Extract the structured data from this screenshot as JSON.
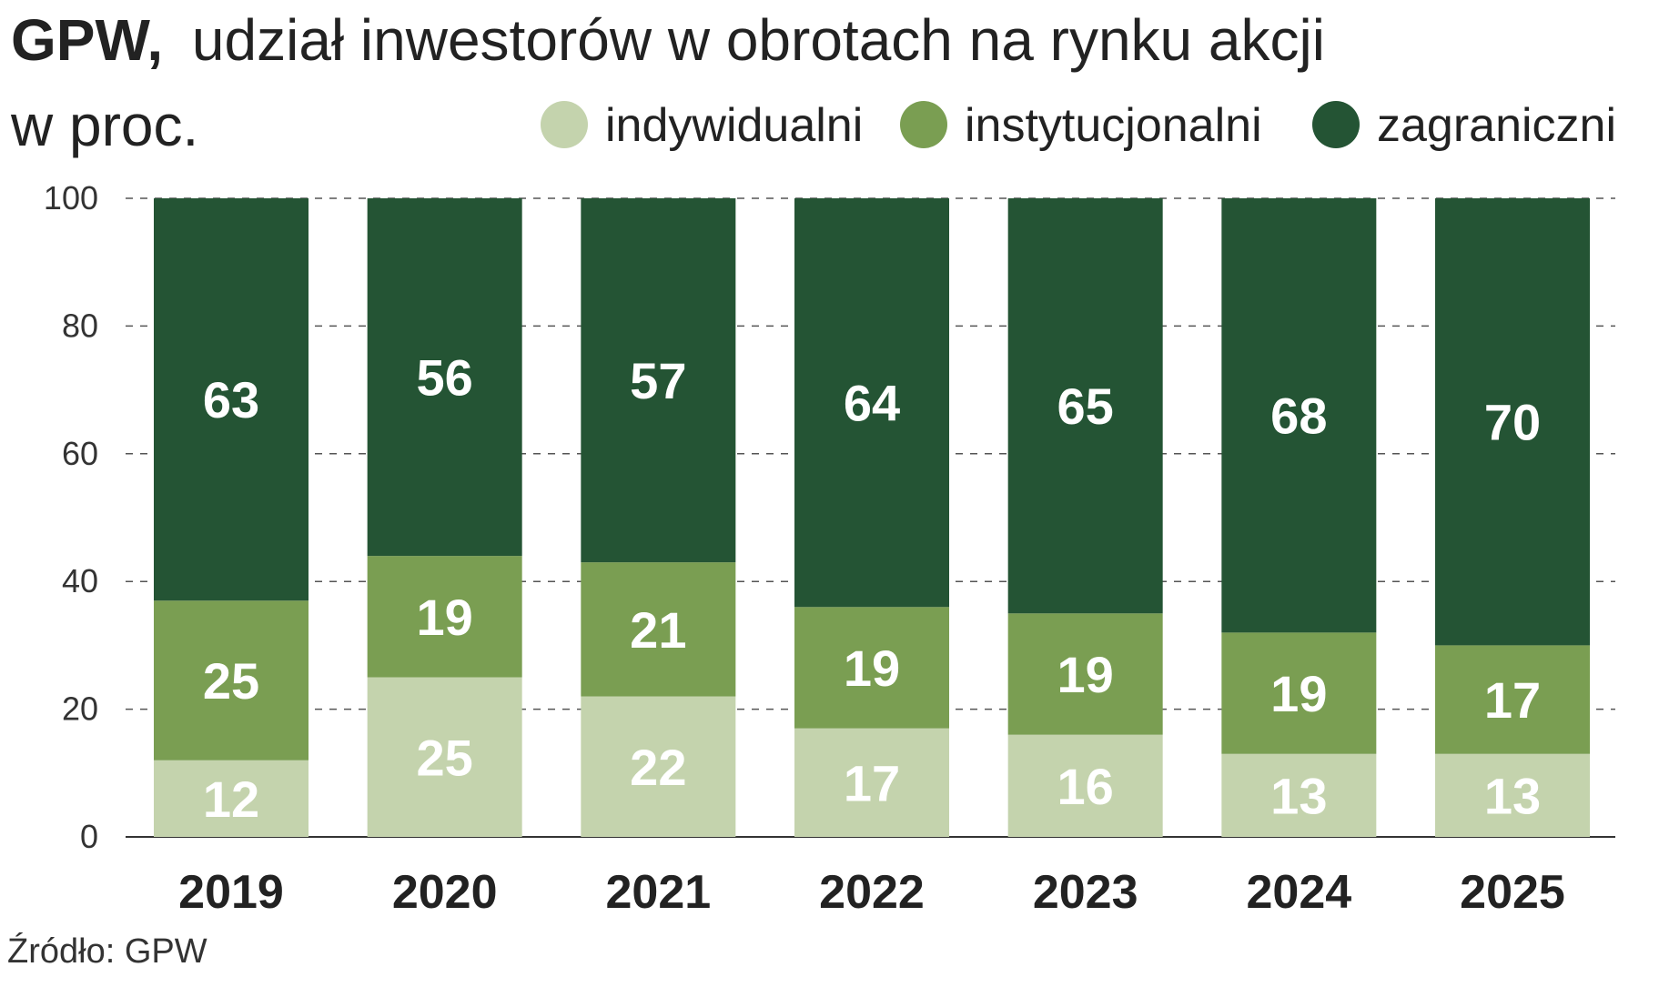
{
  "title": {
    "bold": "GPW,",
    "line1": "udział inwestorów w obrotach na rynku akcji",
    "line2": "w proc."
  },
  "source": "Źródło: GPW",
  "colors": {
    "indywidualni": "#c4d3ad",
    "instytucjonalni": "#7a9e52",
    "zagraniczni": "#245434",
    "grid": "#555555",
    "axis": "#333333"
  },
  "chart_data": {
    "type": "bar",
    "stacked": true,
    "title": "GPW, udział inwestorów w obrotach na rynku akcji w proc.",
    "xlabel": "",
    "ylabel": "",
    "ylim": [
      0,
      100
    ],
    "yticks": [
      0,
      20,
      40,
      60,
      80,
      100
    ],
    "grid": true,
    "legend_position": "top-right",
    "categories": [
      "2019",
      "2020",
      "2021",
      "2022",
      "2023",
      "2024",
      "2025"
    ],
    "series": [
      {
        "name": "indywidualni",
        "values": [
          12,
          25,
          22,
          17,
          16,
          13,
          13
        ]
      },
      {
        "name": "instytucjonalni",
        "values": [
          25,
          19,
          21,
          19,
          19,
          19,
          17
        ]
      },
      {
        "name": "zagraniczni",
        "values": [
          63,
          56,
          57,
          64,
          65,
          68,
          70
        ]
      }
    ]
  }
}
